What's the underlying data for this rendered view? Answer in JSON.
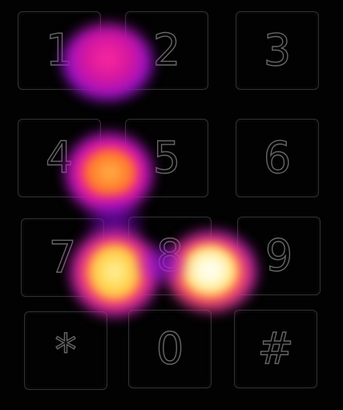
{
  "keypad": {
    "keys": [
      {
        "label": "1"
      },
      {
        "label": "2"
      },
      {
        "label": "3"
      },
      {
        "label": "4"
      },
      {
        "label": "5"
      },
      {
        "label": "6"
      },
      {
        "label": "7"
      },
      {
        "label": "8"
      },
      {
        "label": "9"
      },
      {
        "label": "*"
      },
      {
        "label": "0"
      },
      {
        "label": "#"
      }
    ]
  },
  "heat_spots": [
    {
      "key": "1",
      "intensity": 0.45
    },
    {
      "key": "4",
      "intensity": 0.7
    },
    {
      "key": "7",
      "intensity": 0.9
    },
    {
      "key": "8/9",
      "intensity": 1.0
    }
  ],
  "colors": {
    "background": "#000000",
    "heat_low": "#8a00ff",
    "heat_mid": "#ff1f8f",
    "heat_high": "#ff9a00",
    "heat_peak": "#fffde0"
  }
}
